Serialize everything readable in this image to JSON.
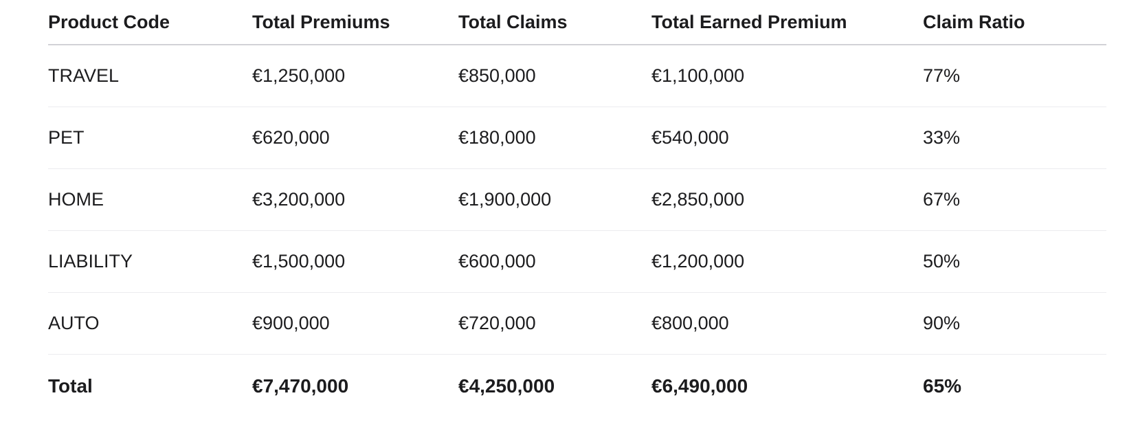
{
  "table": {
    "headers": [
      "Product Code",
      "Total Premiums",
      "Total Claims",
      "Total Earned Premium",
      "Claim Ratio"
    ],
    "rows": [
      [
        "TRAVEL",
        "€1,250,000",
        "€850,000",
        "€1,100,000",
        "77%"
      ],
      [
        "PET",
        "€620,000",
        "€180,000",
        "€540,000",
        "33%"
      ],
      [
        "HOME",
        "€3,200,000",
        "€1,900,000",
        "€2,850,000",
        "67%"
      ],
      [
        "LIABILITY",
        "€1,500,000",
        "€600,000",
        "€1,200,000",
        "50%"
      ],
      [
        "AUTO",
        "€900,000",
        "€720,000",
        "€800,000",
        "90%"
      ]
    ],
    "total": [
      "Total",
      "€7,470,000",
      "€4,250,000",
      "€6,490,000",
      "65%"
    ]
  }
}
